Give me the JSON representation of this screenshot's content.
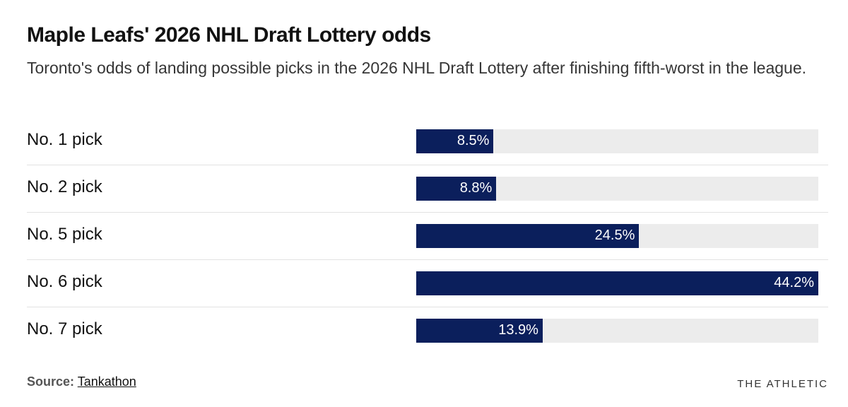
{
  "chart_data": {
    "type": "bar",
    "orientation": "horizontal",
    "title": "Maple Leafs' 2026 NHL Draft Lottery odds",
    "subtitle": "Toronto's odds of landing possible picks in the 2026 NHL Draft Lottery after finishing fifth-worst in the league.",
    "categories": [
      "No. 1 pick",
      "No. 2 pick",
      "No. 5 pick",
      "No. 6 pick",
      "No. 7 pick"
    ],
    "values": [
      8.5,
      8.8,
      24.5,
      44.2,
      13.9
    ],
    "value_labels": [
      "8.5%",
      "8.8%",
      "24.5%",
      "44.2%",
      "13.9%"
    ],
    "xlim": [
      0,
      44.2
    ],
    "grid": false,
    "bar_color": "#0b1f5c",
    "track_color": "#ececec"
  },
  "footer": {
    "source_label": "Source:",
    "source_name": "Tankathon",
    "brand": "THE ATHLETIC"
  }
}
